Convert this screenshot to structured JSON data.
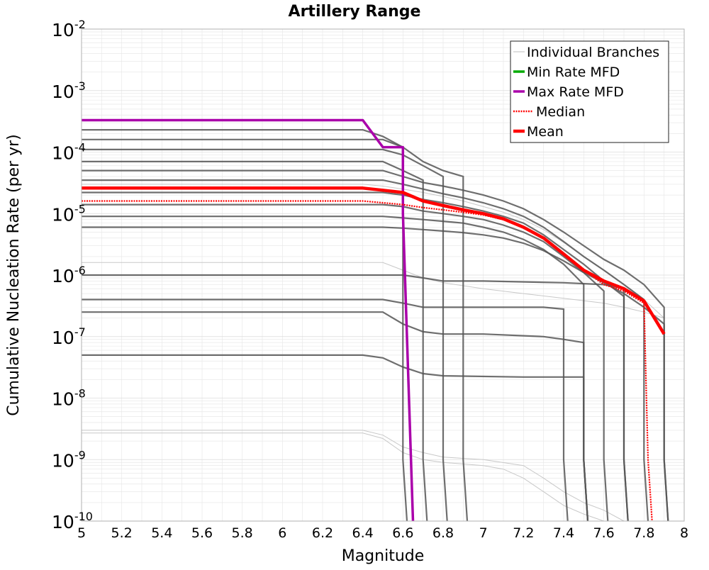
{
  "colors": {
    "branch_light": "#c8c8c8",
    "branch_dark": "#555555",
    "min": "#00aa00",
    "max": "#aa00aa",
    "median": "#ff0000",
    "mean": "#ff0000",
    "grid": "#e8e8e8"
  },
  "chart_data": {
    "type": "line",
    "title": "Artillery Range",
    "xlabel": "Magnitude",
    "ylabel": "Cumulative Nucleation Rate (per yr)",
    "xlim": [
      5.0,
      8.0
    ],
    "ylim": [
      1e-10,
      0.01
    ],
    "yscale": "log",
    "grid": true,
    "legend_position": "top-right",
    "x_ticks": [
      "5",
      "5.2",
      "5.4",
      "5.6",
      "5.8",
      "6",
      "6.2",
      "6.4",
      "6.6",
      "6.8",
      "7",
      "7.2",
      "7.4",
      "7.6",
      "7.8",
      "8"
    ],
    "y_ticks": [
      {
        "base": "10",
        "exp": "-10",
        "value": 1e-10
      },
      {
        "base": "10",
        "exp": "-9",
        "value": 1e-09
      },
      {
        "base": "10",
        "exp": "-8",
        "value": 1e-08
      },
      {
        "base": "10",
        "exp": "-7",
        "value": 1e-07
      },
      {
        "base": "10",
        "exp": "-6",
        "value": 1e-06
      },
      {
        "base": "10",
        "exp": "-5",
        "value": 1e-05
      },
      {
        "base": "10",
        "exp": "-4",
        "value": 0.0001
      },
      {
        "base": "10",
        "exp": "-3",
        "value": 0.001
      },
      {
        "base": "10",
        "exp": "-2",
        "value": 0.01
      }
    ],
    "legend": [
      {
        "label": "Individual Branches",
        "style": "thin-gray"
      },
      {
        "label": "Min Rate MFD",
        "style": "solid-green"
      },
      {
        "label": "Max Rate MFD",
        "style": "solid-purple"
      },
      {
        "label": "Median",
        "style": "dotted-red"
      },
      {
        "label": "Mean",
        "style": "solid-red"
      }
    ],
    "branches_description": "Grayscale branch curves bundle; represented by representative samples",
    "branches_dark": [
      {
        "x": [
          5.0,
          6.4,
          6.5,
          6.6,
          6.6,
          6.62
        ],
        "y": [
          0.00023,
          0.00023,
          0.00018,
          0.00012,
          1e-09,
          1e-10
        ]
      },
      {
        "x": [
          5.0,
          6.5,
          6.6,
          6.7,
          6.8,
          6.9,
          6.9,
          6.92
        ],
        "y": [
          0.00016,
          0.00016,
          0.00012,
          7e-05,
          5e-05,
          4e-05,
          1e-09,
          1e-10
        ]
      },
      {
        "x": [
          5.0,
          6.5,
          6.6,
          6.7,
          6.8,
          6.8,
          6.82
        ],
        "y": [
          0.00011,
          0.00011,
          9e-05,
          6e-05,
          4e-05,
          1e-09,
          1e-10
        ]
      },
      {
        "x": [
          5.0,
          6.5,
          6.6,
          6.7,
          6.7,
          6.72
        ],
        "y": [
          7e-05,
          7e-05,
          5e-05,
          3.5e-05,
          1e-09,
          1e-10
        ]
      },
      {
        "x": [
          5.0,
          6.5,
          6.6,
          6.7,
          6.8,
          6.9,
          7.0,
          7.1,
          7.2,
          7.3,
          7.4,
          7.5,
          7.6,
          7.7,
          7.8,
          7.9,
          7.9,
          7.92
        ],
        "y": [
          5e-05,
          5e-05,
          4e-05,
          3.2e-05,
          2.8e-05,
          2.4e-05,
          2e-05,
          1.6e-05,
          1.2e-05,
          8e-06,
          5e-06,
          3e-06,
          1.8e-06,
          1.2e-06,
          7e-07,
          3e-07,
          1e-09,
          1e-10
        ]
      },
      {
        "x": [
          5.0,
          6.5,
          6.6,
          6.7,
          6.8,
          6.9,
          7.0,
          7.1,
          7.2,
          7.3,
          7.4,
          7.5,
          7.6,
          7.7,
          7.8,
          7.8,
          7.82
        ],
        "y": [
          3.5e-05,
          3.5e-05,
          3e-05,
          2.5e-05,
          2.1e-05,
          1.8e-05,
          1.5e-05,
          1.2e-05,
          9e-06,
          6e-06,
          3.5e-06,
          2e-06,
          1.2e-06,
          7e-07,
          4e-07,
          1e-09,
          1e-10
        ]
      },
      {
        "x": [
          5.0,
          6.5,
          6.6,
          6.7,
          6.8,
          6.9,
          7.0,
          7.1,
          7.2,
          7.3,
          7.4,
          7.5,
          7.6,
          7.7,
          7.7,
          7.72
        ],
        "y": [
          2.2e-05,
          2.2e-05,
          2e-05,
          1.7e-05,
          1.5e-05,
          1.3e-05,
          1.1e-05,
          9e-06,
          7e-06,
          4.5e-06,
          2.6e-06,
          1.5e-06,
          8e-07,
          4.5e-07,
          1e-09,
          1e-10
        ]
      },
      {
        "x": [
          5.0,
          6.5,
          6.6,
          6.7,
          6.8,
          6.9,
          7.0,
          7.1,
          7.2,
          7.3,
          7.4,
          7.5,
          7.6,
          7.6,
          7.62
        ],
        "y": [
          1.4e-05,
          1.4e-05,
          1.3e-05,
          1.1e-05,
          1e-05,
          9e-06,
          8e-06,
          6.5e-06,
          5e-06,
          3.5e-06,
          2e-06,
          1.1e-06,
          5.5e-07,
          1e-09,
          1e-10
        ]
      },
      {
        "x": [
          5.0,
          6.5,
          6.6,
          6.7,
          6.8,
          6.9,
          7.0,
          7.1,
          7.2,
          7.3,
          7.4,
          7.5,
          7.5,
          7.52
        ],
        "y": [
          9e-06,
          9e-06,
          8.5e-06,
          8e-06,
          7.5e-06,
          7e-06,
          6e-06,
          5e-06,
          3.8e-06,
          2.6e-06,
          1.5e-06,
          7e-07,
          1e-09,
          1e-10
        ]
      },
      {
        "x": [
          5.0,
          6.5,
          6.6,
          6.7,
          6.8,
          6.9,
          7.0,
          7.1,
          7.2,
          7.3,
          7.4,
          7.5,
          7.6,
          7.7,
          7.8,
          7.9,
          7.9,
          7.92
        ],
        "y": [
          6e-06,
          6e-06,
          5.8e-06,
          5.5e-06,
          5.2e-06,
          4.9e-06,
          4.5e-06,
          4e-06,
          3.3e-06,
          2.5e-06,
          1.7e-06,
          1.1e-06,
          7.5e-07,
          5e-07,
          3e-07,
          1.6e-07,
          1e-09,
          1e-10
        ]
      },
      {
        "x": [
          5.0,
          6.6,
          6.7,
          6.8,
          7.0,
          7.4,
          7.6,
          7.7,
          7.7,
          7.72
        ],
        "y": [
          1e-06,
          1e-06,
          9e-07,
          8e-07,
          8e-07,
          7.5e-07,
          7e-07,
          6e-07,
          1e-09,
          1e-10
        ]
      },
      {
        "x": [
          5.0,
          6.5,
          6.6,
          6.7,
          6.9,
          7.3,
          7.4,
          7.4,
          7.42
        ],
        "y": [
          4e-07,
          4e-07,
          3.5e-07,
          3e-07,
          3e-07,
          3e-07,
          2.8e-07,
          1e-09,
          1e-10
        ]
      },
      {
        "x": [
          5.0,
          6.5,
          6.6,
          6.7,
          6.8,
          7.0,
          7.3,
          7.4,
          7.5,
          7.5,
          7.52
        ],
        "y": [
          2.5e-07,
          2.5e-07,
          1.6e-07,
          1.2e-07,
          1.1e-07,
          1.1e-07,
          1e-07,
          9e-08,
          8e-08,
          1e-09,
          1e-10
        ]
      },
      {
        "x": [
          5.0,
          6.4,
          6.5,
          6.6,
          6.7,
          6.8,
          7.2,
          7.3,
          7.4,
          7.5,
          7.5,
          7.52
        ],
        "y": [
          5e-08,
          5e-08,
          4.5e-08,
          3.2e-08,
          2.5e-08,
          2.3e-08,
          2.2e-08,
          2.2e-08,
          2.2e-08,
          2.2e-08,
          1e-09,
          1e-10
        ]
      }
    ],
    "branches_light": [
      {
        "x": [
          5.0,
          6.4,
          6.5,
          6.6,
          6.7,
          6.8,
          6.9,
          7.0,
          7.1,
          7.2,
          7.3,
          7.4,
          7.5,
          7.6,
          7.7,
          7.8,
          7.9
        ],
        "y": [
          3e-05,
          3e-05,
          2.8e-05,
          2.5e-05,
          2.2e-05,
          1.9e-05,
          1.6e-05,
          1.3e-05,
          1.05e-05,
          8e-06,
          5.5e-06,
          3.4e-06,
          2e-06,
          1.2e-06,
          7e-07,
          4e-07,
          2e-07
        ]
      },
      {
        "x": [
          5.0,
          6.5,
          6.6,
          6.7,
          6.8,
          7.0,
          7.2,
          7.4,
          7.6,
          7.7,
          7.8,
          7.9
        ],
        "y": [
          1.6e-06,
          1.6e-06,
          1.2e-06,
          9e-07,
          7.5e-07,
          6e-07,
          5e-07,
          4.2e-07,
          3.5e-07,
          3e-07,
          2.5e-07,
          2e-07
        ]
      },
      {
        "x": [
          5.0,
          6.4,
          6.5,
          6.6,
          6.7,
          6.8,
          7.0,
          7.2,
          7.3,
          7.4,
          7.5,
          7.6,
          7.7
        ],
        "y": [
          3e-09,
          3e-09,
          2.5e-09,
          1.6e-09,
          1.3e-09,
          1.1e-09,
          1e-09,
          8e-10,
          5e-10,
          3e-10,
          2e-10,
          1.5e-10,
          1e-10
        ]
      },
      {
        "x": [
          5.0,
          6.4,
          6.5,
          6.6,
          6.7,
          6.8,
          7.0,
          7.1,
          7.2,
          7.3,
          7.4,
          7.5,
          7.6
        ],
        "y": [
          2.7e-09,
          2.7e-09,
          2.2e-09,
          1.3e-09,
          1e-09,
          9e-10,
          8e-10,
          7e-10,
          5e-10,
          3e-10,
          1.8e-10,
          1.3e-10,
          1e-10
        ]
      }
    ],
    "series": [
      {
        "name": "Max Rate MFD",
        "x": [
          5.0,
          6.4,
          6.5,
          6.6,
          6.6,
          6.65
        ],
        "y": [
          0.00033,
          0.00033,
          0.00012,
          0.00012,
          1e-05,
          1e-10
        ]
      },
      {
        "name": "Median",
        "x": [
          5.0,
          6.4,
          6.5,
          6.6,
          6.7,
          6.8,
          6.9,
          7.0,
          7.1,
          7.2,
          7.3,
          7.4,
          7.5,
          7.6,
          7.7,
          7.8,
          7.82,
          7.84
        ],
        "y": [
          1.6e-05,
          1.6e-05,
          1.5e-05,
          1.4e-05,
          1.25e-05,
          1.15e-05,
          1.05e-05,
          9.5e-06,
          8e-06,
          6e-06,
          4e-06,
          2.2e-06,
          1.2e-06,
          7e-07,
          5.5e-07,
          3.5e-07,
          1e-09,
          1e-10
        ]
      },
      {
        "name": "Mean",
        "x": [
          5.0,
          6.4,
          6.5,
          6.6,
          6.7,
          6.8,
          6.9,
          7.0,
          7.1,
          7.2,
          7.3,
          7.4,
          7.5,
          7.6,
          7.7,
          7.8,
          7.9
        ],
        "y": [
          2.6e-05,
          2.6e-05,
          2.4e-05,
          2.2e-05,
          1.6e-05,
          1.35e-05,
          1.15e-05,
          1e-05,
          8.2e-06,
          6e-06,
          4e-06,
          2.2e-06,
          1.2e-06,
          8e-07,
          6e-07,
          3.8e-07,
          1.1e-07
        ]
      }
    ]
  }
}
